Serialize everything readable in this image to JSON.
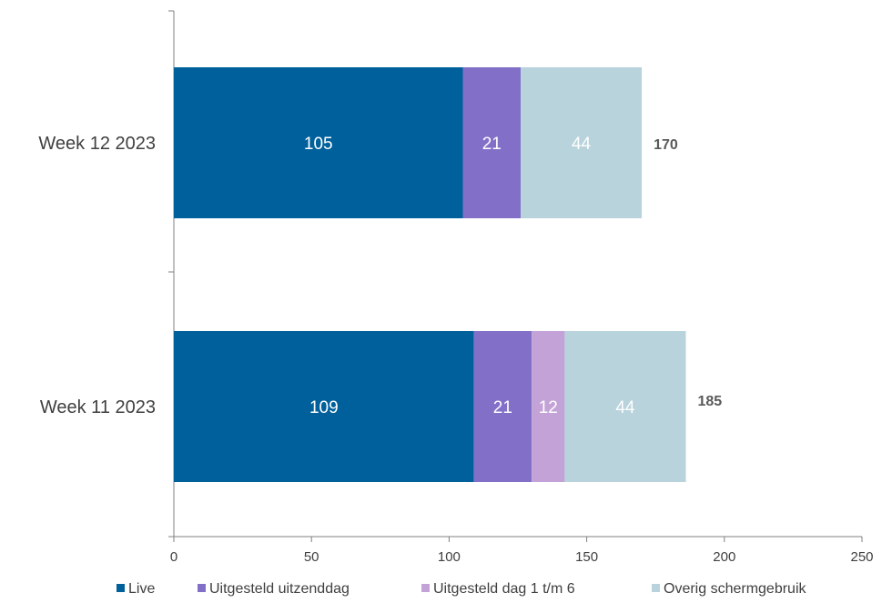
{
  "chart_data": {
    "type": "bar",
    "orientation": "horizontal",
    "stacked": true,
    "categories": [
      "Week 12 2023",
      "Week 11 2023"
    ],
    "series": [
      {
        "name": "Live",
        "color": "#00609c",
        "values": [
          105,
          109
        ],
        "labels": [
          "105",
          "109"
        ]
      },
      {
        "name": "Uitgesteld uitzenddag",
        "color": "#8270c8",
        "values": [
          21,
          21
        ],
        "labels": [
          "21",
          "21"
        ]
      },
      {
        "name": "Uitgesteld dag 1 t/m 6",
        "color": "#c3a3d7",
        "values": [
          0,
          12
        ],
        "labels": [
          "",
          "12"
        ]
      },
      {
        "name": "Overig schermgebruik",
        "color": "#b8d3dc",
        "values": [
          44,
          44
        ],
        "labels": [
          "44",
          "44"
        ]
      }
    ],
    "totals": [
      "170",
      "185"
    ],
    "xlim": [
      0,
      250
    ],
    "xticks": [
      "0",
      "50",
      "100",
      "150",
      "200",
      "250"
    ],
    "title": "",
    "xlabel": "",
    "ylabel": "",
    "grid": false,
    "legend_position": "bottom"
  }
}
